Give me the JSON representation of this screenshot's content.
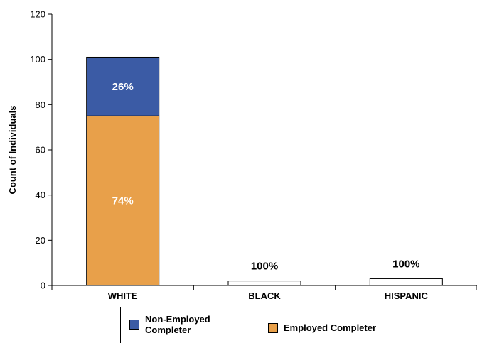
{
  "colors": {
    "non_employed": "#3b5ba5",
    "employed": "#e8a04a",
    "empty_bar": "#ffffff",
    "axis": "#000000"
  },
  "legend": {
    "items": [
      {
        "label": "Non-Employed\nCompleter",
        "color": "#3b5ba5"
      },
      {
        "label": "Employed Completer",
        "color": "#e8a04a"
      }
    ],
    "position": "bottom"
  },
  "chart_data": {
    "type": "bar",
    "stacked": true,
    "title": "",
    "xlabel": "",
    "ylabel": "Count of Individuals",
    "ylim": [
      0,
      120
    ],
    "yticks": [
      0,
      20,
      40,
      60,
      80,
      100,
      120
    ],
    "grid": false,
    "categories": [
      "WHITE",
      "BLACK",
      "HISPANIC"
    ],
    "series": [
      {
        "name": "Employed Completer",
        "values": [
          75,
          0,
          0
        ],
        "labels": [
          "74%",
          "",
          ""
        ],
        "color": "#e8a04a"
      },
      {
        "name": "Non-Employed Completer",
        "values": [
          26,
          0,
          0
        ],
        "labels": [
          "26%",
          "",
          ""
        ],
        "color": "#3b5ba5"
      }
    ],
    "other_bars": {
      "values": [
        0,
        2,
        3
      ],
      "labels": [
        "",
        "100%",
        "100%"
      ]
    }
  }
}
